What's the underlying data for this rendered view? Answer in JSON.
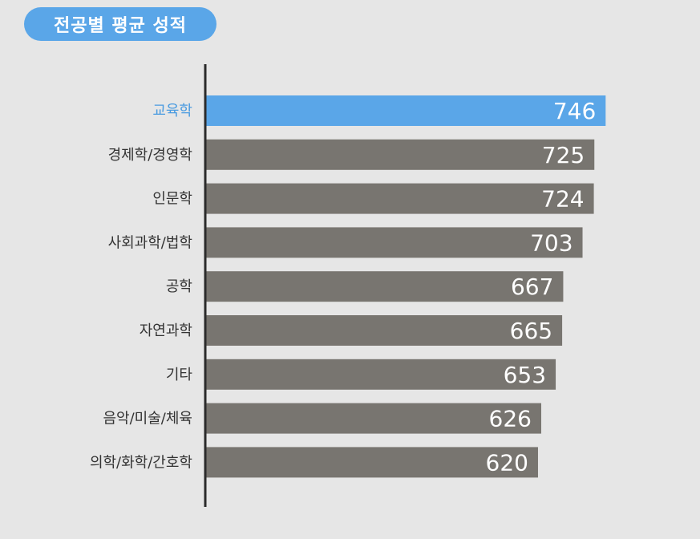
{
  "chart_data": {
    "type": "bar",
    "orientation": "horizontal",
    "title": "전공별 평균 성적",
    "categories": [
      "교육학",
      "경제학/경영학",
      "인문학",
      "사회과학/법학",
      "공학",
      "자연과학",
      "기타",
      "음악/미술/체육",
      "의학/화학/간호학"
    ],
    "values": [
      746,
      725,
      724,
      703,
      667,
      665,
      653,
      626,
      620
    ],
    "highlight_index": 0,
    "xlim": [
      0,
      756
    ],
    "colors": {
      "highlight": "#5aa6e8",
      "bar": "#787570",
      "axis": "#2b2b2b",
      "highlight_label": "#4a9be0",
      "label": "#333333"
    }
  }
}
